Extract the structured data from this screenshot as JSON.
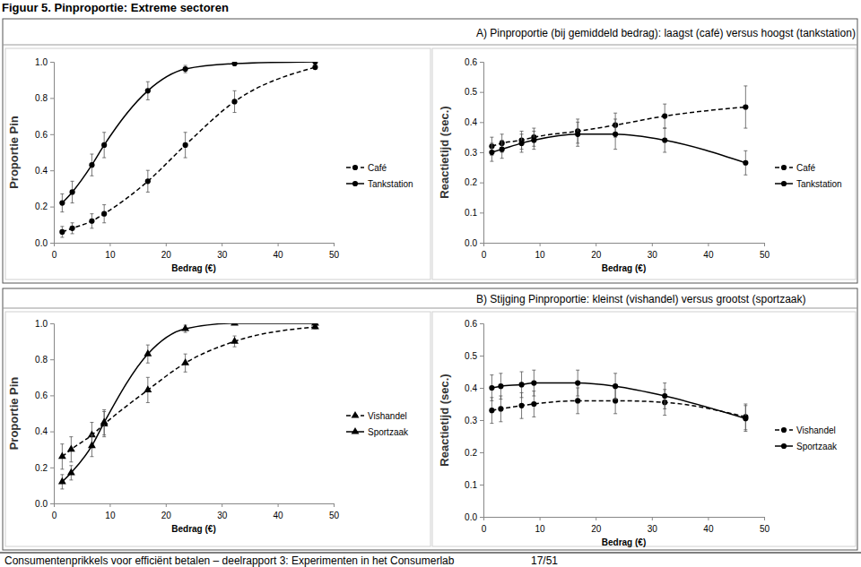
{
  "figure_title": "Figuur 5. Pinproportie: Extreme sectoren",
  "section_titles": [
    "A) Pinproportie (bij gemiddeld bedrag): laagst (café) versus hoogst (tankstation)",
    "B) Stijging Pinproportie: kleinst (vishandel) versus grootst (sportzaak)"
  ],
  "footer": [
    "Consumentenprikkels voor efficiënt betalen – deelrapport 3: Experimenten in het Consumerlab",
    "17/51"
  ],
  "chart_data": [
    {
      "type": "line",
      "x_label": "Bedrag (€)",
      "y_label": "Proportie Pin",
      "x": [
        1.5,
        3.3,
        6.8,
        9,
        16.8,
        23.5,
        32.3,
        46.7
      ],
      "xlim": [
        0,
        50
      ],
      "xticks": [
        0,
        10,
        20,
        30,
        40,
        50
      ],
      "ylim": [
        0,
        1
      ],
      "yticks": [
        {
          "value": 0,
          "label": "0.0"
        },
        0.2,
        0.4,
        0.6,
        0.8,
        {
          "value": 1,
          "label": "1.0"
        }
      ],
      "grid": false,
      "legend": "right",
      "series": [
        {
          "name": "Café",
          "color": "#000000",
          "marker": "circle",
          "line_style": "dashed",
          "values": [
            0.06,
            0.08,
            0.12,
            0.16,
            0.34,
            0.54,
            0.78,
            0.97
          ],
          "errors": [
            0.03,
            0.03,
            0.04,
            0.05,
            0.06,
            0.07,
            0.06,
            0.01
          ]
        },
        {
          "name": "Tankstation",
          "color": "#000000",
          "marker": "circle",
          "line_style": "solid",
          "values": [
            0.22,
            0.28,
            0.43,
            0.54,
            0.84,
            0.96,
            0.99,
            1.0
          ],
          "errors": [
            0.05,
            0.06,
            0.06,
            0.07,
            0.05,
            0.02,
            0.005,
            0.005
          ]
        }
      ]
    },
    {
      "type": "line",
      "x_label": "Bedrag (€)",
      "y_label": "Reactietijd (sec.)",
      "x": [
        1.5,
        3.3,
        6.8,
        9,
        16.8,
        23.5,
        32.3,
        46.7
      ],
      "xlim": [
        0,
        50
      ],
      "xticks": [
        0,
        10,
        20,
        30,
        40,
        50
      ],
      "ylim": [
        0,
        0.6
      ],
      "yticks": [
        {
          "value": 0,
          "label": "0.0"
        },
        0.1,
        0.2,
        0.3,
        0.4,
        0.5,
        0.6
      ],
      "grid": false,
      "legend": "right",
      "series": [
        {
          "name": "Café",
          "color": "#000000",
          "marker": "circle",
          "line_style": "dashed",
          "values": [
            0.32,
            0.33,
            0.34,
            0.35,
            0.37,
            0.39,
            0.42,
            0.45
          ],
          "errors": [
            0.03,
            0.03,
            0.03,
            0.03,
            0.04,
            0.04,
            0.04,
            0.07
          ]
        },
        {
          "name": "Tankstation",
          "color": "#000000",
          "marker": "circle",
          "line_style": "solid",
          "values": [
            0.3,
            0.31,
            0.33,
            0.34,
            0.36,
            0.36,
            0.34,
            0.265
          ],
          "errors": [
            0.03,
            0.03,
            0.03,
            0.03,
            0.04,
            0.05,
            0.04,
            0.04
          ]
        }
      ]
    },
    {
      "type": "line",
      "x_label": "Bedrag (€)",
      "y_label": "Proportie Pin",
      "x": [
        1.5,
        3.1,
        6.8,
        9,
        16.8,
        23.5,
        32.3,
        46.7
      ],
      "xlim": [
        0,
        50
      ],
      "xticks": [
        0,
        10,
        20,
        30,
        40,
        50
      ],
      "ylim": [
        0,
        1
      ],
      "yticks": [
        {
          "value": 0,
          "label": "0.0"
        },
        0.2,
        0.4,
        0.6,
        0.8,
        {
          "value": 1,
          "label": "1.0"
        }
      ],
      "grid": false,
      "legend": "right",
      "series": [
        {
          "name": "Vishandel",
          "color": "#000000",
          "marker": "triangle",
          "line_style": "dashed",
          "values": [
            0.26,
            0.3,
            0.38,
            0.44,
            0.63,
            0.78,
            0.9,
            0.98
          ],
          "errors": [
            0.07,
            0.07,
            0.07,
            0.07,
            0.07,
            0.05,
            0.03,
            0.01
          ]
        },
        {
          "name": "Sportzaak",
          "color": "#000000",
          "marker": "triangle",
          "line_style": "solid",
          "values": [
            0.12,
            0.17,
            0.32,
            0.45,
            0.83,
            0.97,
            1.0,
            1.0
          ],
          "errors": [
            0.04,
            0.04,
            0.06,
            0.07,
            0.05,
            0.02,
            0.005,
            0.005
          ]
        }
      ]
    },
    {
      "type": "line",
      "x_label": "Bedrag (€)",
      "y_label": "Reactietijd (sec.)",
      "x": [
        1.5,
        3.1,
        6.8,
        9,
        16.8,
        23.5,
        32.3,
        46.7
      ],
      "xlim": [
        0,
        50
      ],
      "xticks": [
        0,
        10,
        20,
        30,
        40,
        50
      ],
      "ylim": [
        0,
        0.6
      ],
      "yticks": [
        {
          "value": 0,
          "label": "0.0"
        },
        0.1,
        0.2,
        0.3,
        0.4,
        0.5,
        0.6
      ],
      "grid": false,
      "legend": "right",
      "series": [
        {
          "name": "Vishandel",
          "color": "#000000",
          "marker": "circle",
          "line_style": "dashed",
          "values": [
            0.33,
            0.335,
            0.345,
            0.35,
            0.36,
            0.36,
            0.355,
            0.31
          ],
          "errors": [
            0.04,
            0.04,
            0.04,
            0.04,
            0.04,
            0.04,
            0.04,
            0.04
          ]
        },
        {
          "name": "Sportzaak",
          "color": "#000000",
          "marker": "circle",
          "line_style": "solid",
          "values": [
            0.4,
            0.405,
            0.41,
            0.415,
            0.415,
            0.405,
            0.375,
            0.305
          ],
          "errors": [
            0.04,
            0.04,
            0.04,
            0.04,
            0.04,
            0.04,
            0.04,
            0.04
          ]
        }
      ]
    }
  ]
}
